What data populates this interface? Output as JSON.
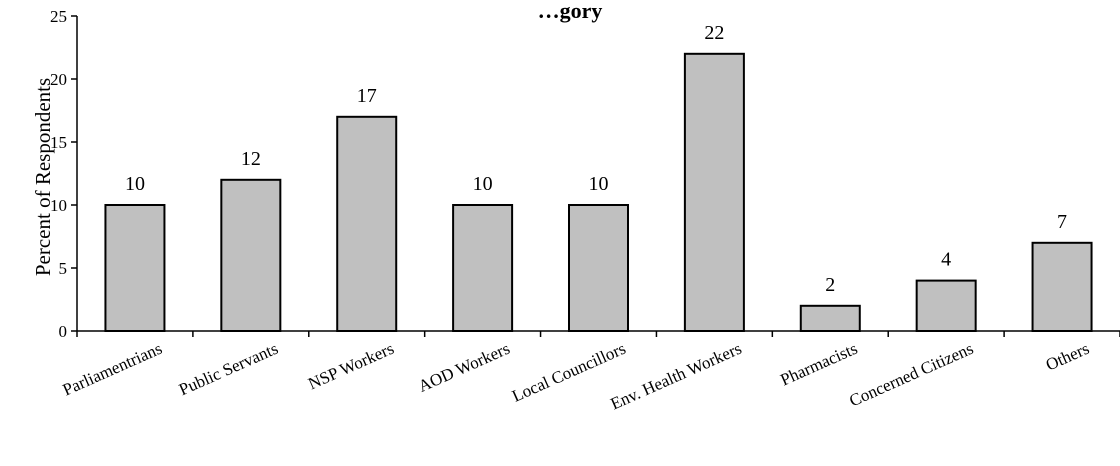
{
  "chart_data": {
    "type": "bar",
    "title": "…gory",
    "xlabel": "",
    "ylabel": "Percent of Respondents",
    "ylim": [
      0,
      25
    ],
    "yticks": [
      0,
      5,
      10,
      15,
      20,
      25
    ],
    "categories": [
      "Parliamentrians",
      "Public Servants",
      "NSP Workers",
      "AOD Workers",
      "Local Councillors",
      "Env. Health Workers",
      "Pharmacists",
      "Concerned Citizens",
      "Others"
    ],
    "values": [
      10,
      12,
      17,
      10,
      10,
      22,
      2,
      4,
      7
    ],
    "bar_color": "#c0c0c0",
    "grid": false,
    "legend": "none"
  }
}
